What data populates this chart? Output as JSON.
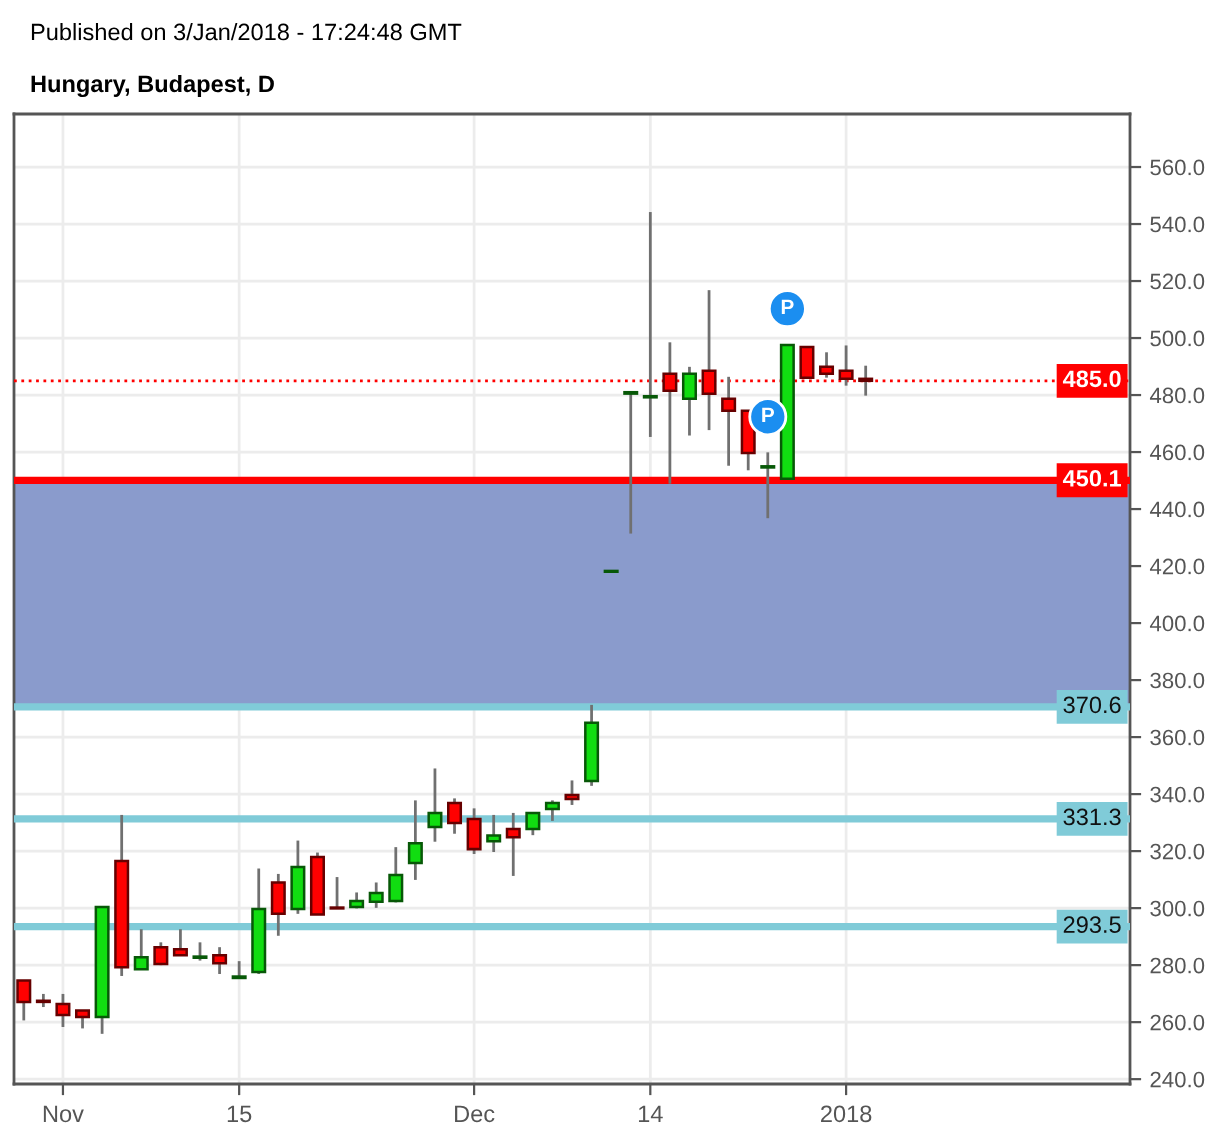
{
  "chart_data": {
    "type": "candlestick",
    "title": "Hungary, Budapest, D",
    "annotations": [
      "Published on 3/Jan/2018 - 17:24:48 GMT"
    ],
    "categories": [
      null,
      null,
      "Nov",
      null,
      null,
      null,
      null,
      null,
      null,
      null,
      null,
      "15",
      null,
      null,
      null,
      null,
      null,
      null,
      null,
      null,
      null,
      null,
      null,
      "Dec",
      null,
      null,
      null,
      null,
      null,
      null,
      null,
      null,
      "14",
      null,
      null,
      null,
      null,
      null,
      null,
      null,
      null,
      null,
      "2018",
      null,
      null,
      null,
      null,
      null,
      null,
      null,
      null,
      null,
      null,
      null,
      null,
      null,
      null
    ],
    "ohlc": [
      [
        274.6,
        274.6,
        260.6,
        267.1
      ],
      [
        267.5,
        269.9,
        265.3,
        267.1
      ],
      [
        266.4,
        269.9,
        258.3,
        262.5
      ],
      [
        264.1,
        264.1,
        257.8,
        261.8
      ],
      [
        261.8,
        300.4,
        255.9,
        300.4
      ],
      [
        316.5,
        332.7,
        276.2,
        279.3
      ],
      [
        278.6,
        292.6,
        278.6,
        282.8
      ],
      [
        286.3,
        288.0,
        280.0,
        280.4
      ],
      [
        285.6,
        292.6,
        283.5,
        283.5
      ],
      [
        282.6,
        288.0,
        281.6,
        283.0
      ],
      [
        283.5,
        286.3,
        276.9,
        280.7
      ],
      [
        275.5,
        281.4,
        275.5,
        276.0
      ],
      [
        277.6,
        313.9,
        276.9,
        299.7
      ],
      [
        309.0,
        312.0,
        290.3,
        298.0
      ],
      [
        299.7,
        323.7,
        298.0,
        314.4
      ],
      [
        317.9,
        319.5,
        297.8,
        297.8
      ],
      [
        300.2,
        310.9,
        299.9,
        299.9
      ],
      [
        300.4,
        305.5,
        299.9,
        302.5
      ],
      [
        302.2,
        309.0,
        300.1,
        305.3
      ],
      [
        302.5,
        321.4,
        302.0,
        311.6
      ],
      [
        315.8,
        337.8,
        309.9,
        322.8
      ],
      [
        328.5,
        349.0,
        323.3,
        333.4
      ],
      [
        336.9,
        338.5,
        326.1,
        329.9
      ],
      [
        331.3,
        335.0,
        319.0,
        320.7
      ],
      [
        323.5,
        332.7,
        319.7,
        325.5
      ],
      [
        327.8,
        333.4,
        311.3,
        324.9
      ],
      [
        327.8,
        333.4,
        325.6,
        333.4
      ],
      [
        334.8,
        337.8,
        330.6,
        336.9
      ],
      [
        339.7,
        344.8,
        336.2,
        338.3
      ],
      [
        344.6,
        371.3,
        342.9,
        365.0
      ],
      [
        418.0,
        418.3,
        418.0,
        418.3
      ],
      [
        480.5,
        481.0,
        431.4,
        481.0
      ],
      [
        479.2,
        544.2,
        465.3,
        479.6
      ],
      [
        487.5,
        498.5,
        448.9,
        481.5
      ],
      [
        478.7,
        489.9,
        465.8,
        487.5
      ],
      [
        488.5,
        516.8,
        467.7,
        480.5
      ],
      [
        478.7,
        486.4,
        455.2,
        474.5
      ],
      [
        474.5,
        474.5,
        453.6,
        459.7
      ],
      [
        454.6,
        459.9,
        436.8,
        455.0
      ],
      [
        450.6,
        497.6,
        450.6,
        497.6
      ],
      [
        496.9,
        496.9,
        486.1,
        486.1
      ],
      [
        489.9,
        495.0,
        486.1,
        487.5
      ],
      [
        488.5,
        497.4,
        483.3,
        485.7
      ],
      [
        485.7,
        490.3,
        479.8,
        485.0
      ],
      null,
      null,
      null,
      null,
      null,
      null,
      null,
      null,
      null,
      null,
      null,
      null,
      null
    ],
    "colors": [
      "#ff0000",
      "#ff0000",
      "#ff0000",
      "#ff0000",
      "#11dd11",
      "#ff0000",
      "#11dd11",
      "#ff0000",
      "#ff0000",
      "#11dd11",
      "#ff0000",
      "#11dd11",
      "#11dd11",
      "#ff0000",
      "#11dd11",
      "#ff0000",
      "#ff0000",
      "#11dd11",
      "#11dd11",
      "#11dd11",
      "#11dd11",
      "#11dd11",
      "#ff0000",
      "#ff0000",
      "#11dd11",
      "#ff0000",
      "#11dd11",
      "#11dd11",
      "#ff0000",
      "#11dd11",
      "#11dd11",
      "#11dd11",
      "#11dd11",
      "#ff0000",
      "#11dd11",
      "#ff0000",
      "#ff0000",
      "#ff0000",
      "#11dd11",
      "#11dd11",
      "#ff0000",
      "#ff0000",
      "#ff0000",
      "#ff0000",
      null,
      null,
      null,
      null,
      null,
      null,
      null,
      null,
      null,
      null,
      null,
      null,
      null
    ],
    "series": [
      {
        "type": "scatter",
        "color": "#1b8ef0",
        "marker": "circle",
        "values": [
          null,
          null,
          null,
          null,
          null,
          null,
          null,
          null,
          null,
          null,
          null,
          null,
          null,
          null,
          null,
          null,
          null,
          null,
          null,
          null,
          null,
          null,
          null,
          null,
          null,
          null,
          null,
          null,
          null,
          null,
          null,
          null,
          null,
          null,
          null,
          null,
          null,
          null,
          472.4,
          510.3,
          null,
          null,
          null,
          null,
          null,
          null,
          null,
          null,
          null,
          null,
          null,
          null,
          null,
          null,
          null,
          null,
          null
        ],
        "value_labels": [
          null,
          null,
          null,
          null,
          null,
          null,
          null,
          null,
          null,
          null,
          null,
          null,
          null,
          null,
          null,
          null,
          null,
          null,
          null,
          null,
          null,
          null,
          null,
          null,
          null,
          null,
          null,
          null,
          null,
          null,
          null,
          null,
          null,
          null,
          null,
          null,
          null,
          null,
          "P",
          "P",
          null,
          null,
          null,
          null,
          null,
          null,
          null,
          null,
          null,
          null,
          null,
          null,
          null,
          null,
          null,
          null,
          null
        ]
      }
    ],
    "ylim": [
      238.3,
      578.6
    ],
    "yticks": [
      {
        "value": 240,
        "label": "240.0"
      },
      {
        "value": 260,
        "label": "260.0"
      },
      {
        "value": 280,
        "label": "280.0"
      },
      {
        "value": 300,
        "label": "300.0"
      },
      {
        "value": 320,
        "label": "320.0"
      },
      {
        "value": 340,
        "label": "340.0"
      },
      {
        "value": 360,
        "label": "360.0"
      },
      {
        "value": 380,
        "label": "380.0"
      },
      {
        "value": 400,
        "label": "400.0"
      },
      {
        "value": 420,
        "label": "420.0"
      },
      {
        "value": 440,
        "label": "440.0"
      },
      {
        "value": 460,
        "label": "460.0"
      },
      {
        "value": 480,
        "label": "480.0"
      },
      {
        "value": 500,
        "label": "500.0"
      },
      {
        "value": 520,
        "label": "520.0"
      },
      {
        "value": 540,
        "label": "540.0"
      },
      {
        "value": 560,
        "label": "560.0"
      }
    ],
    "ref_lines": [
      {
        "axis": "y",
        "value": 485.0,
        "label": "485.0",
        "color": "#ff0000",
        "line_style": "dotted"
      },
      {
        "axis": "y",
        "value": 450.1,
        "label": "450.1",
        "color": "#ff0000",
        "line_style": "solid"
      },
      {
        "axis": "y",
        "value": 370.6,
        "label": "370.6",
        "color": "#80cbd8",
        "line_style": "solid"
      },
      {
        "axis": "y",
        "value": 331.3,
        "label": "331.3",
        "color": "#80cbd8",
        "line_style": "solid"
      },
      {
        "axis": "y",
        "value": 293.5,
        "label": "293.5",
        "color": "#80cbd8",
        "line_style": "solid"
      }
    ],
    "bands": [
      {
        "axis": "y",
        "from": 370.6,
        "to": 450.1,
        "color": "#8a9bcc"
      }
    ],
    "grid": true
  }
}
